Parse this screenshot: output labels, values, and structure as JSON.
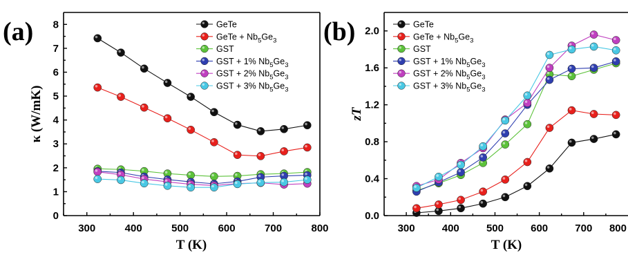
{
  "colors": {
    "GeTe": "#111111",
    "GeTe + Nb5Ge3": "#e8201c",
    "GST": "#5cc23a",
    "GST + 1% Nb5Ge3": "#2f3fb0",
    "GST + 2% Nb5Ge3": "#c040c0",
    "GST + 3% Nb5Ge3": "#49c8e4"
  },
  "legend_labels": [
    {
      "key": "GeTe",
      "base": "GeTe",
      "sub_parts": []
    },
    {
      "key": "GeTe + Nb5Ge3",
      "base": "GeTe + Nb",
      "sub_parts": [
        [
          "5",
          "Ge"
        ],
        [
          "3",
          ""
        ]
      ]
    },
    {
      "key": "GST",
      "base": "GST",
      "sub_parts": []
    },
    {
      "key": "GST + 1% Nb5Ge3",
      "base": "GST + 1% Nb",
      "sub_parts": [
        [
          "5",
          "Ge"
        ],
        [
          "3",
          ""
        ]
      ]
    },
    {
      "key": "GST + 2% Nb5Ge3",
      "base": "GST + 2% Nb",
      "sub_parts": [
        [
          "5",
          "Ge"
        ],
        [
          "3",
          ""
        ]
      ]
    },
    {
      "key": "GST + 3% Nb5Ge3",
      "base": "GST + 3% Nb",
      "sub_parts": [
        [
          "5",
          "Ge"
        ],
        [
          "3",
          ""
        ]
      ]
    }
  ],
  "chart_data": [
    {
      "type": "line",
      "panel_label": "(a)",
      "xlabel": "T (K)",
      "ylabel": "κ (W/mK)",
      "xlim": [
        250,
        800
      ],
      "ylim": [
        0,
        8.5
      ],
      "xticks": [
        300,
        400,
        500,
        600,
        700,
        800
      ],
      "yticks": [
        0,
        1,
        2,
        3,
        4,
        5,
        6,
        7,
        8
      ],
      "legend_position": "top-right",
      "x": [
        323,
        373,
        423,
        473,
        523,
        573,
        623,
        673,
        723,
        773
      ],
      "series": [
        {
          "name": "GeTe",
          "values": [
            7.42,
            6.82,
            6.15,
            5.55,
            4.97,
            4.33,
            3.8,
            3.53,
            3.62,
            3.78
          ]
        },
        {
          "name": "GeTe + Nb5Ge3",
          "values": [
            5.36,
            4.97,
            4.52,
            4.07,
            3.59,
            3.07,
            2.54,
            2.49,
            2.69,
            2.85
          ]
        },
        {
          "name": "GST",
          "values": [
            1.96,
            1.93,
            1.86,
            1.76,
            1.69,
            1.64,
            1.66,
            1.73,
            1.76,
            1.82
          ]
        },
        {
          "name": "GST + 1% Nb5Ge3",
          "values": [
            1.86,
            1.8,
            1.63,
            1.51,
            1.41,
            1.33,
            1.43,
            1.61,
            1.66,
            1.69
          ]
        },
        {
          "name": "GST + 2% Nb5Ge3",
          "values": [
            1.83,
            1.71,
            1.53,
            1.41,
            1.31,
            1.26,
            1.34,
            1.37,
            1.3,
            1.34
          ]
        },
        {
          "name": "GST + 3% Nb5Ge3",
          "values": [
            1.53,
            1.49,
            1.35,
            1.25,
            1.18,
            1.18,
            1.32,
            1.38,
            1.4,
            1.5
          ]
        }
      ]
    },
    {
      "type": "line",
      "panel_label": "(b)",
      "xlabel": "T (K)",
      "ylabel": "zT",
      "xlim": [
        250,
        800
      ],
      "ylim": [
        0,
        2.2
      ],
      "xticks": [
        300,
        400,
        500,
        600,
        700,
        800
      ],
      "yticks": [
        0.0,
        0.4,
        0.8,
        1.2,
        1.6,
        2.0
      ],
      "ytick_labels": [
        "0.0",
        "0.4",
        "0.8",
        "1.2",
        "1.6",
        "2.0"
      ],
      "legend_position": "top-left",
      "x": [
        323,
        373,
        423,
        473,
        523,
        573,
        623,
        673,
        723,
        773
      ],
      "series": [
        {
          "name": "GeTe",
          "values": [
            0.03,
            0.05,
            0.08,
            0.13,
            0.2,
            0.32,
            0.51,
            0.79,
            0.83,
            0.88
          ]
        },
        {
          "name": "GeTe + Nb5Ge3",
          "values": [
            0.08,
            0.12,
            0.17,
            0.26,
            0.39,
            0.58,
            0.95,
            1.14,
            1.1,
            1.09
          ]
        },
        {
          "name": "GST",
          "values": [
            0.27,
            0.35,
            0.44,
            0.57,
            0.77,
            0.99,
            1.53,
            1.51,
            1.58,
            1.65
          ]
        },
        {
          "name": "GST + 1% Nb5Ge3",
          "values": [
            0.26,
            0.36,
            0.47,
            0.63,
            0.89,
            1.2,
            1.47,
            1.59,
            1.6,
            1.67
          ]
        },
        {
          "name": "GST + 2% Nb5Ge3",
          "values": [
            0.32,
            0.39,
            0.57,
            0.73,
            1.04,
            1.22,
            1.6,
            1.84,
            1.96,
            1.9
          ]
        },
        {
          "name": "GST + 3% Nb5Ge3",
          "values": [
            0.3,
            0.42,
            0.55,
            0.75,
            1.03,
            1.3,
            1.74,
            1.8,
            1.83,
            1.79
          ]
        }
      ]
    }
  ]
}
